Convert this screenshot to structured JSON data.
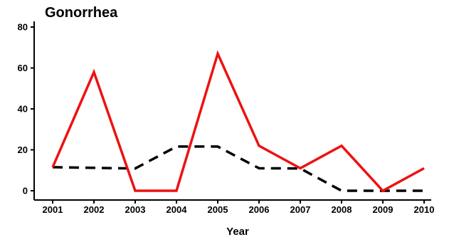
{
  "chart_data": {
    "type": "line",
    "title": "Gonorrhea",
    "xlabel": "Year",
    "ylabel": "",
    "categories": [
      "2001",
      "2002",
      "2003",
      "2004",
      "2005",
      "2006",
      "2007",
      "2008",
      "2009",
      "2010"
    ],
    "ylim": [
      0,
      80
    ],
    "yticks": [
      0,
      20,
      40,
      60,
      80
    ],
    "grid": false,
    "legend": "none",
    "series": [
      {
        "values": [
          11.5,
          58,
          0,
          0,
          67,
          22,
          11,
          22,
          0,
          11
        ],
        "color": "#ee1111",
        "style": "solid"
      },
      {
        "values": [
          11.5,
          11.2,
          10.9,
          21.6,
          21.6,
          11,
          10.9,
          0,
          0,
          0
        ],
        "color": "#000000",
        "style": "dashed"
      }
    ]
  }
}
